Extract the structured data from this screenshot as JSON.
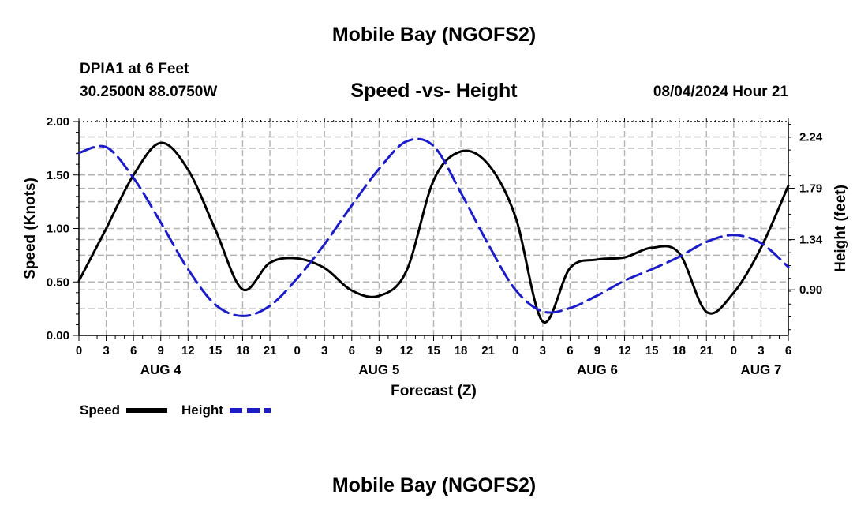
{
  "header": {
    "title": "Mobile Bay (NGOFS2)",
    "station": "DPIA1 at 6 Feet",
    "coords": "30.2500N  88.0750W",
    "subtitle": "Speed -vs- Height",
    "datetime": "08/04/2024 Hour 21",
    "footer_title": "Mobile Bay (NGOFS2)"
  },
  "legend": {
    "speed_label": "Speed",
    "height_label": "Height"
  },
  "colors": {
    "speed": "#000000",
    "height": "#1c1cc8",
    "grid": "#b4b4b4"
  },
  "chart_data": {
    "type": "line",
    "title": "Speed -vs- Height",
    "xlabel": "Forecast (Z)",
    "ylabel": "Speed (Knots)",
    "y2label": "Height (feet)",
    "xlim": [
      0,
      78
    ],
    "ylim": [
      0,
      2.0
    ],
    "y2lim": [
      0.5,
      2.375
    ],
    "xticks": [
      0,
      3,
      6,
      9,
      12,
      15,
      18,
      21,
      24,
      27,
      30,
      33,
      36,
      39,
      42,
      45,
      48,
      51,
      54,
      57,
      60,
      63,
      66,
      69,
      72,
      75,
      78
    ],
    "xtick_labels": [
      "0",
      "3",
      "6",
      "9",
      "12",
      "15",
      "18",
      "21",
      "0",
      "3",
      "6",
      "9",
      "12",
      "15",
      "18",
      "21",
      "0",
      "3",
      "6",
      "9",
      "12",
      "15",
      "18",
      "21",
      "0",
      "3",
      "6"
    ],
    "day_labels": [
      {
        "x": 9,
        "label": "AUG 4"
      },
      {
        "x": 33,
        "label": "AUG 5"
      },
      {
        "x": 57,
        "label": "AUG 6"
      },
      {
        "x": 75,
        "label": "AUG 7"
      }
    ],
    "yticks": [
      0,
      0.5,
      1.0,
      1.5,
      2.0
    ],
    "ytick_labels": [
      "0.00",
      "0.50",
      "1.00",
      "1.50",
      "2.00"
    ],
    "y2ticks": [
      0.9,
      1.34,
      1.79,
      2.24
    ],
    "y2tick_labels": [
      "0.90",
      "1.34",
      "1.79",
      "2.24"
    ],
    "grid": true,
    "series": [
      {
        "name": "Speed",
        "axis": "left",
        "x": [
          0,
          3,
          6,
          9,
          12,
          15,
          18,
          21,
          24,
          27,
          30,
          33,
          36,
          39,
          42,
          45,
          48,
          51,
          54,
          57,
          60,
          63,
          66,
          69,
          72,
          75,
          78
        ],
        "values": [
          0.51,
          1.0,
          1.5,
          1.8,
          1.55,
          0.99,
          0.43,
          0.68,
          0.72,
          0.63,
          0.42,
          0.37,
          0.6,
          1.45,
          1.72,
          1.6,
          1.11,
          0.13,
          0.63,
          0.71,
          0.73,
          0.82,
          0.77,
          0.22,
          0.4,
          0.82,
          1.4
        ]
      },
      {
        "name": "Height",
        "axis": "right",
        "x": [
          0,
          3,
          6,
          9,
          12,
          15,
          18,
          21,
          24,
          27,
          30,
          33,
          36,
          39,
          42,
          45,
          48,
          51,
          54,
          57,
          60,
          63,
          66,
          69,
          72,
          75,
          78
        ],
        "values": [
          2.1,
          2.15,
          1.88,
          1.49,
          1.08,
          0.77,
          0.67,
          0.76,
          1.0,
          1.3,
          1.64,
          1.96,
          2.2,
          2.16,
          1.75,
          1.3,
          0.9,
          0.71,
          0.74,
          0.85,
          0.98,
          1.08,
          1.19,
          1.32,
          1.38,
          1.31,
          1.1
        ]
      }
    ]
  }
}
